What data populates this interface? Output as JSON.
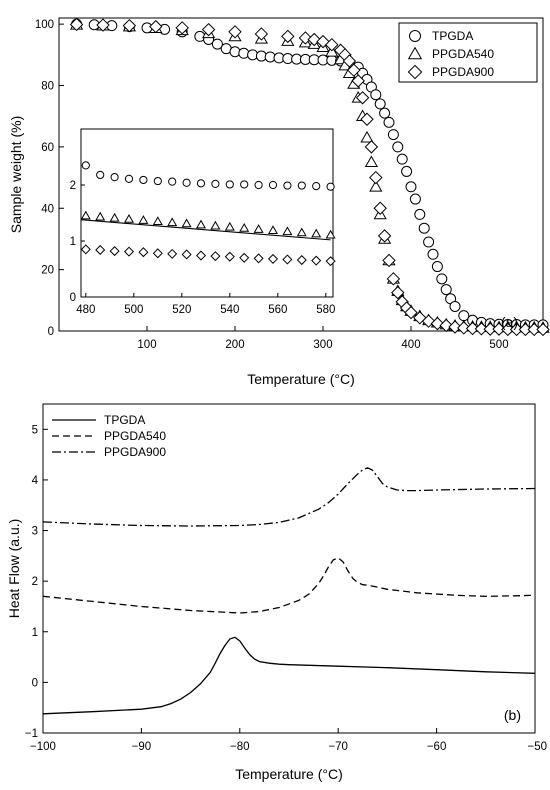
{
  "chart_data": [
    {
      "id": "a",
      "type": "scatter",
      "panel_label": "(a)",
      "xlabel": "Temperature (°C)",
      "ylabel": "Sample weight (%)",
      "xlim": [
        0,
        550
      ],
      "ylim": [
        0,
        102
      ],
      "xticks": [
        100,
        200,
        300,
        400,
        500
      ],
      "yticks": [
        0,
        20,
        40,
        60,
        80,
        100
      ],
      "legend_position": "top-right",
      "series": [
        {
          "name": "TPGDA",
          "marker": "circle",
          "x": [
            20,
            40,
            60,
            80,
            100,
            120,
            140,
            160,
            170,
            180,
            190,
            200,
            210,
            220,
            230,
            240,
            250,
            260,
            270,
            280,
            290,
            300,
            310,
            320,
            330,
            340,
            345,
            350,
            355,
            360,
            365,
            370,
            375,
            380,
            385,
            390,
            395,
            400,
            405,
            410,
            415,
            420,
            425,
            430,
            435,
            440,
            445,
            450,
            460,
            470,
            480,
            490,
            500,
            510,
            520,
            530,
            540,
            550
          ],
          "y": [
            100,
            99.8,
            99.5,
            99.2,
            98.8,
            98.3,
            97.5,
            96,
            95,
            93.5,
            92,
            91,
            90.5,
            90,
            89.6,
            89.3,
            89,
            88.8,
            88.6,
            88.5,
            88.4,
            88.3,
            88.2,
            88,
            87.5,
            86,
            84,
            82,
            79.5,
            77,
            74,
            71,
            68,
            64,
            60,
            56,
            52,
            47,
            43,
            38,
            33.5,
            29,
            25,
            21,
            17,
            13.5,
            10.5,
            8,
            5,
            3.5,
            2.8,
            2.4,
            2.2,
            2.1,
            2.1,
            2.0,
            2.0,
            2.0
          ]
        },
        {
          "name": "PPGDA540",
          "marker": "triangle",
          "x": [
            20,
            50,
            80,
            110,
            140,
            170,
            200,
            230,
            260,
            280,
            290,
            300,
            310,
            320,
            325,
            330,
            335,
            340,
            345,
            350,
            355,
            360,
            365,
            370,
            375,
            380,
            385,
            390,
            395,
            400,
            410,
            420,
            430,
            440,
            450,
            460,
            470,
            480,
            490,
            500,
            510,
            520,
            530,
            540,
            550
          ],
          "y": [
            99.8,
            99.5,
            99.2,
            98.7,
            98,
            97,
            96,
            95.2,
            94.5,
            94,
            93.5,
            92.5,
            91,
            88.5,
            86.5,
            84,
            80.5,
            76,
            70,
            63,
            55,
            47,
            38,
            30,
            23,
            17,
            13,
            10,
            8,
            6.5,
            4.8,
            3.5,
            2.7,
            2.1,
            1.7,
            1.5,
            1.4,
            1.3,
            1.3,
            1.2,
            1.2,
            1.2,
            1.1,
            1.1,
            1.0
          ]
        },
        {
          "name": "PPGDA900",
          "marker": "diamond",
          "x": [
            20,
            50,
            80,
            110,
            140,
            170,
            200,
            230,
            260,
            280,
            290,
            300,
            310,
            320,
            325,
            330,
            335,
            340,
            345,
            350,
            355,
            360,
            365,
            370,
            375,
            380,
            385,
            390,
            395,
            400,
            410,
            420,
            430,
            440,
            450,
            460,
            470,
            480,
            490,
            500,
            510,
            520,
            530,
            540,
            550
          ],
          "y": [
            99.9,
            99.7,
            99.5,
            99.2,
            98.8,
            98.2,
            97.5,
            96.8,
            96,
            95.5,
            95,
            94.3,
            93.3,
            91.5,
            90,
            88,
            85,
            81.5,
            76,
            69,
            60,
            50,
            40,
            31,
            23,
            17,
            12.5,
            9.5,
            7.5,
            6,
            4.3,
            3.2,
            2.4,
            1.8,
            1.3,
            1.0,
            0.8,
            0.7,
            0.6,
            0.6,
            0.5,
            0.5,
            0.5,
            0.5,
            0.5
          ]
        }
      ],
      "inset": {
        "xlim": [
          478,
          583
        ],
        "ylim": [
          0,
          3
        ],
        "xticks": [
          480,
          500,
          520,
          540,
          560,
          580
        ],
        "yticks": [
          0,
          1,
          2
        ],
        "series": [
          {
            "name": "TPGDA",
            "marker": "circle",
            "x": [
              480,
              486,
              492,
              498,
              504,
              510,
              516,
              522,
              528,
              534,
              540,
              546,
              552,
              558,
              564,
              570,
              576,
              582
            ],
            "y": [
              2.35,
              2.18,
              2.14,
              2.11,
              2.09,
              2.07,
              2.06,
              2.04,
              2.03,
              2.02,
              2.01,
              2.01,
              2.0,
              2.0,
              1.99,
              1.99,
              1.98,
              1.97
            ]
          },
          {
            "name": "PPGDA540",
            "marker": "triangle",
            "x": [
              480,
              486,
              492,
              498,
              504,
              510,
              516,
              522,
              528,
              534,
              540,
              546,
              552,
              558,
              564,
              570,
              576,
              582
            ],
            "y": [
              1.45,
              1.43,
              1.41,
              1.39,
              1.37,
              1.35,
              1.33,
              1.31,
              1.29,
              1.27,
              1.25,
              1.23,
              1.21,
              1.19,
              1.17,
              1.15,
              1.13,
              1.11
            ],
            "line_x": [
              478,
              582
            ],
            "line_y": [
              1.38,
              1.02
            ]
          },
          {
            "name": "PPGDA900",
            "marker": "diamond",
            "x": [
              480,
              486,
              492,
              498,
              504,
              510,
              516,
              522,
              528,
              534,
              540,
              546,
              552,
              558,
              564,
              570,
              576,
              582
            ],
            "y": [
              0.85,
              0.84,
              0.82,
              0.81,
              0.8,
              0.78,
              0.77,
              0.76,
              0.74,
              0.73,
              0.72,
              0.7,
              0.69,
              0.68,
              0.67,
              0.66,
              0.65,
              0.64
            ]
          }
        ]
      }
    },
    {
      "id": "b",
      "type": "line",
      "panel_label": "(b)",
      "xlabel": "Temperature (°C)",
      "ylabel": "Heat Flow (a.u.)",
      "xlim": [
        -100,
        -50
      ],
      "ylim": [
        -1,
        5.5
      ],
      "xticks": [
        -100,
        -90,
        -80,
        -70,
        -60,
        -50
      ],
      "xticklabels": [
        "−100",
        "−90",
        "−80",
        "−70",
        "−60",
        "−50"
      ],
      "yticks": [
        -1,
        0,
        1,
        2,
        3,
        4,
        5
      ],
      "yticklabels": [
        "−1",
        "0",
        "1",
        "2",
        "3",
        "4",
        "5"
      ],
      "legend_position": "top-left",
      "series": [
        {
          "name": "TPGDA",
          "style": "solid",
          "x": [
            -100,
            -95,
            -90,
            -88,
            -87,
            -86,
            -85,
            -84,
            -83,
            -82.5,
            -82,
            -81.5,
            -81,
            -80.5,
            -80,
            -79.5,
            -79,
            -78.5,
            -78,
            -77,
            -76,
            -75,
            -70,
            -65,
            -60,
            -55,
            -50
          ],
          "y": [
            -0.62,
            -0.58,
            -0.53,
            -0.48,
            -0.42,
            -0.33,
            -0.2,
            -0.03,
            0.2,
            0.38,
            0.57,
            0.73,
            0.86,
            0.89,
            0.82,
            0.68,
            0.55,
            0.46,
            0.41,
            0.38,
            0.36,
            0.35,
            0.32,
            0.29,
            0.25,
            0.21,
            0.18
          ]
        },
        {
          "name": "PPGDA540",
          "style": "dashed",
          "x": [
            -100,
            -95,
            -90,
            -85,
            -80,
            -78,
            -76,
            -74,
            -73,
            -72,
            -71.5,
            -71,
            -70.5,
            -70,
            -69.5,
            -69,
            -68.5,
            -68,
            -67.5,
            -67,
            -66,
            -65,
            -62,
            -58,
            -55,
            -52,
            -50
          ],
          "y": [
            1.7,
            1.6,
            1.5,
            1.42,
            1.37,
            1.4,
            1.48,
            1.62,
            1.74,
            1.95,
            2.1,
            2.28,
            2.42,
            2.46,
            2.38,
            2.2,
            2.05,
            1.97,
            1.93,
            1.92,
            1.88,
            1.84,
            1.77,
            1.72,
            1.7,
            1.71,
            1.72
          ]
        },
        {
          "name": "PPGDA900",
          "style": "dashdot",
          "x": [
            -100,
            -95,
            -90,
            -85,
            -80,
            -78,
            -76,
            -74,
            -72,
            -71,
            -70,
            -69,
            -68,
            -67.5,
            -67,
            -66.5,
            -66,
            -65.5,
            -65,
            -64.5,
            -64,
            -63,
            -62,
            -60,
            -55,
            -50
          ],
          "y": [
            3.17,
            3.13,
            3.1,
            3.09,
            3.1,
            3.12,
            3.16,
            3.25,
            3.42,
            3.55,
            3.72,
            3.93,
            4.12,
            4.2,
            4.24,
            4.19,
            4.06,
            3.93,
            3.86,
            3.83,
            3.8,
            3.79,
            3.79,
            3.8,
            3.82,
            3.83
          ]
        }
      ]
    }
  ]
}
